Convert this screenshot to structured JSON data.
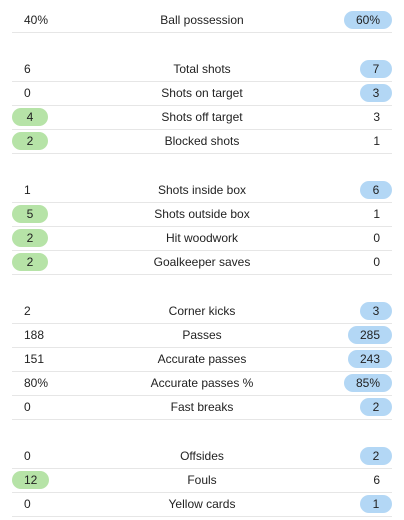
{
  "colors": {
    "left_highlight": "#b6e3a7",
    "right_highlight": "#b3d7f5",
    "divider": "#e6e6e6"
  },
  "groups": [
    {
      "name": "possession",
      "rows": [
        {
          "label": "Ball possession",
          "left": "40%",
          "right": "60%",
          "winner": "right"
        }
      ]
    },
    {
      "name": "shots",
      "rows": [
        {
          "label": "Total shots",
          "left": "6",
          "right": "7",
          "winner": "right"
        },
        {
          "label": "Shots on target",
          "left": "0",
          "right": "3",
          "winner": "right"
        },
        {
          "label": "Shots off target",
          "left": "4",
          "right": "3",
          "winner": "left"
        },
        {
          "label": "Blocked shots",
          "left": "2",
          "right": "1",
          "winner": "left"
        }
      ]
    },
    {
      "name": "shot-locations",
      "rows": [
        {
          "label": "Shots inside box",
          "left": "1",
          "right": "6",
          "winner": "right"
        },
        {
          "label": "Shots outside box",
          "left": "5",
          "right": "1",
          "winner": "left"
        },
        {
          "label": "Hit woodwork",
          "left": "2",
          "right": "0",
          "winner": "left"
        },
        {
          "label": "Goalkeeper saves",
          "left": "2",
          "right": "0",
          "winner": "left"
        }
      ]
    },
    {
      "name": "attacking",
      "rows": [
        {
          "label": "Corner kicks",
          "left": "2",
          "right": "3",
          "winner": "right"
        },
        {
          "label": "Passes",
          "left": "188",
          "right": "285",
          "winner": "right"
        },
        {
          "label": "Accurate passes",
          "left": "151",
          "right": "243",
          "winner": "right"
        },
        {
          "label": "Accurate passes %",
          "left": "80%",
          "right": "85%",
          "winner": "right"
        },
        {
          "label": "Fast breaks",
          "left": "0",
          "right": "2",
          "winner": "right"
        }
      ]
    },
    {
      "name": "discipline",
      "rows": [
        {
          "label": "Offsides",
          "left": "0",
          "right": "2",
          "winner": "right"
        },
        {
          "label": "Fouls",
          "left": "12",
          "right": "6",
          "winner": "left"
        },
        {
          "label": "Yellow cards",
          "left": "0",
          "right": "1",
          "winner": "right"
        }
      ]
    }
  ]
}
